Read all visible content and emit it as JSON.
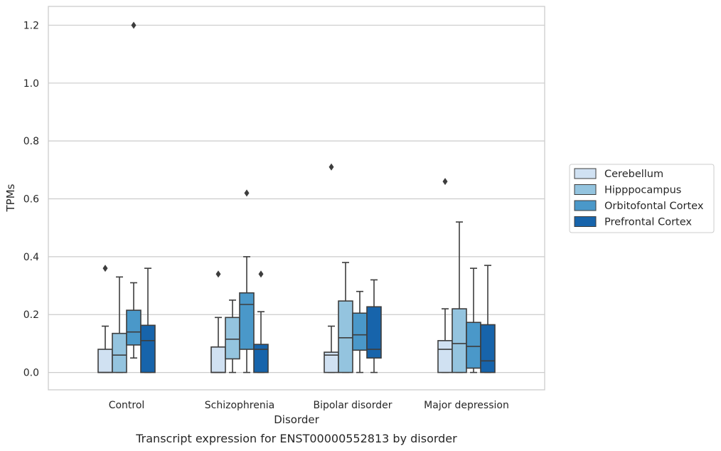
{
  "chart_data": {
    "type": "box",
    "title": "",
    "caption": "Transcript expression for ENST00000552813 by disorder",
    "xlabel": "Disorder",
    "ylabel": "TPMs",
    "ylim": [
      -0.06,
      1.265
    ],
    "yticks": [
      0.0,
      0.2,
      0.4,
      0.6,
      0.8,
      1.0,
      1.2
    ],
    "ytick_labels": [
      "0.0",
      "0.2",
      "0.4",
      "0.6",
      "0.8",
      "1.0",
      "1.2"
    ],
    "grid": "horizontal",
    "legend_position": "right",
    "categories": [
      "Control",
      "Schizophrenia",
      "Bipolar disorder",
      "Major depression"
    ],
    "series": [
      {
        "name": "Cerebellum",
        "color": "#d0e1f2",
        "boxes": [
          {
            "whisker_low": 0.0,
            "q1": 0.0,
            "median": 0.0,
            "q3": 0.08,
            "whisker_high": 0.16,
            "outliers": [
              0.36
            ]
          },
          {
            "whisker_low": 0.0,
            "q1": 0.0,
            "median": 0.0,
            "q3": 0.088,
            "whisker_high": 0.19,
            "outliers": [
              0.34
            ]
          },
          {
            "whisker_low": 0.0,
            "q1": 0.0,
            "median": 0.06,
            "q3": 0.07,
            "whisker_high": 0.16,
            "outliers": [
              0.71
            ]
          },
          {
            "whisker_low": 0.0,
            "q1": 0.0,
            "median": 0.08,
            "q3": 0.11,
            "whisker_high": 0.22,
            "outliers": [
              0.66
            ]
          }
        ]
      },
      {
        "name": "Hipppocampus",
        "color": "#94c4df",
        "boxes": [
          {
            "whisker_low": 0.0,
            "q1": 0.0,
            "median": 0.06,
            "q3": 0.135,
            "whisker_high": 0.33,
            "outliers": []
          },
          {
            "whisker_low": 0.0,
            "q1": 0.047,
            "median": 0.115,
            "q3": 0.19,
            "whisker_high": 0.25,
            "outliers": []
          },
          {
            "whisker_low": 0.0,
            "q1": 0.0,
            "median": 0.12,
            "q3": 0.247,
            "whisker_high": 0.38,
            "outliers": []
          },
          {
            "whisker_low": 0.0,
            "q1": 0.0,
            "median": 0.1,
            "q3": 0.22,
            "whisker_high": 0.52,
            "outliers": []
          }
        ]
      },
      {
        "name": "Orbitofontal Cortex",
        "color": "#4a98c9",
        "boxes": [
          {
            "whisker_low": 0.05,
            "q1": 0.095,
            "median": 0.14,
            "q3": 0.215,
            "whisker_high": 0.31,
            "outliers": [
              1.2
            ]
          },
          {
            "whisker_low": 0.0,
            "q1": 0.08,
            "median": 0.235,
            "q3": 0.275,
            "whisker_high": 0.4,
            "outliers": [
              0.62
            ]
          },
          {
            "whisker_low": 0.0,
            "q1": 0.077,
            "median": 0.13,
            "q3": 0.205,
            "whisker_high": 0.28,
            "outliers": []
          },
          {
            "whisker_low": 0.0,
            "q1": 0.015,
            "median": 0.09,
            "q3": 0.173,
            "whisker_high": 0.36,
            "outliers": []
          }
        ]
      },
      {
        "name": "Prefrontal Cortex",
        "color": "#1764ab",
        "boxes": [
          {
            "whisker_low": 0.0,
            "q1": 0.0,
            "median": 0.11,
            "q3": 0.163,
            "whisker_high": 0.36,
            "outliers": []
          },
          {
            "whisker_low": 0.0,
            "q1": 0.0,
            "median": 0.08,
            "q3": 0.097,
            "whisker_high": 0.21,
            "outliers": [
              0.34
            ]
          },
          {
            "whisker_low": 0.0,
            "q1": 0.05,
            "median": 0.08,
            "q3": 0.227,
            "whisker_high": 0.32,
            "outliers": []
          },
          {
            "whisker_low": 0.0,
            "q1": 0.0,
            "median": 0.04,
            "q3": 0.165,
            "whisker_high": 0.37,
            "outliers": []
          }
        ]
      }
    ]
  }
}
